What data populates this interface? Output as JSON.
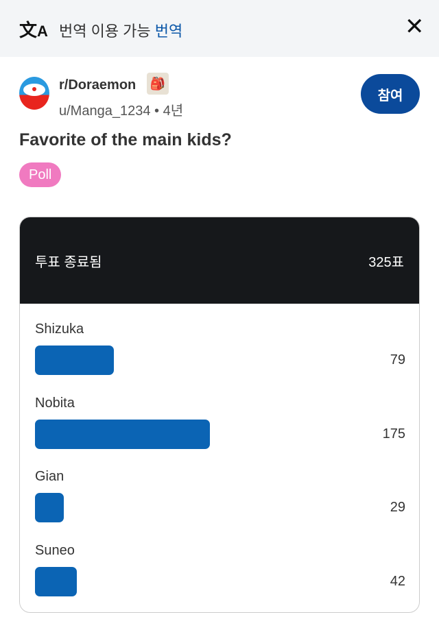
{
  "translation_bar": {
    "icon": "translate-icon",
    "text": "번역 이용 가능",
    "link": "번역",
    "close_icon": "close-icon"
  },
  "post": {
    "subreddit": "r/Doraemon",
    "author": "u/Manga_1234",
    "separator": "•",
    "age": "4년",
    "join_label": "참여",
    "title": "Favorite of the main kids?",
    "flair": "Poll",
    "flair_color": "#f07ac0"
  },
  "poll": {
    "status": "투표 종료됨",
    "total_votes": 325,
    "total_label": "325표",
    "bar_color": "#0b64b4",
    "options": [
      {
        "label": "Shizuka",
        "votes": 79
      },
      {
        "label": "Nobita",
        "votes": 175
      },
      {
        "label": "Gian",
        "votes": 29
      },
      {
        "label": "Suneo",
        "votes": 42
      }
    ]
  }
}
